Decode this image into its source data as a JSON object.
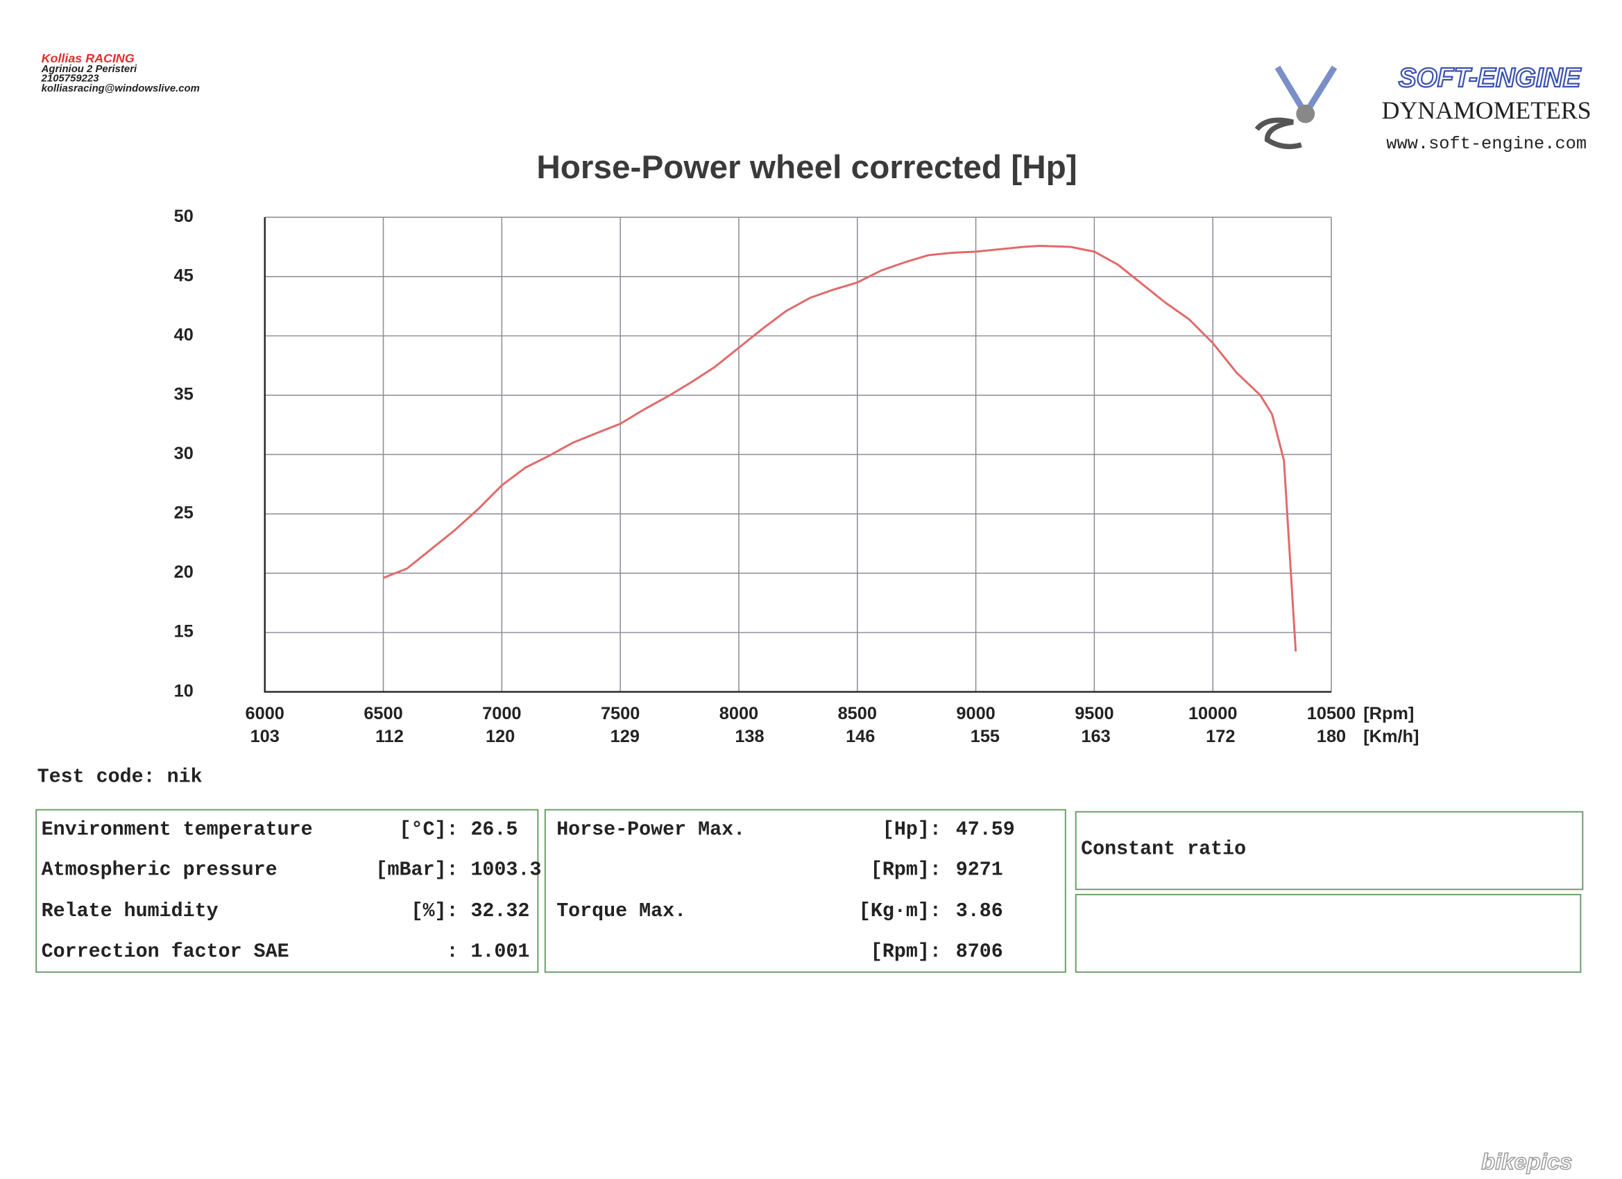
{
  "header": {
    "company": "Kollias RACING",
    "address": "Agriniou 2 Peristeri",
    "phone": "2105759223",
    "email": "kolliasracing@windowslive.com"
  },
  "logo": {
    "brand": "SOFT-ENGINE",
    "subtitle": "DYNAMOMETERS",
    "url": "www.soft-engine.com"
  },
  "chart_data": {
    "type": "line",
    "title": "Horse-Power wheel corrected [Hp]",
    "x": [
      6500,
      6600,
      6700,
      6800,
      6900,
      7000,
      7100,
      7200,
      7300,
      7400,
      7500,
      7600,
      7700,
      7800,
      7900,
      8000,
      8100,
      8200,
      8300,
      8400,
      8500,
      8600,
      8700,
      8800,
      8900,
      9000,
      9100,
      9200,
      9271,
      9400,
      9500,
      9600,
      9700,
      9800,
      9900,
      10000,
      10100,
      10200,
      10250,
      10300,
      10320,
      10350
    ],
    "values": [
      19.6,
      20.4,
      22.0,
      23.6,
      25.4,
      27.4,
      28.9,
      29.9,
      31.0,
      31.8,
      32.6,
      33.8,
      34.9,
      36.1,
      37.4,
      39.0,
      40.6,
      42.1,
      43.2,
      43.9,
      44.5,
      45.5,
      46.2,
      46.8,
      47.0,
      47.1,
      47.3,
      47.5,
      47.59,
      47.5,
      47.1,
      46.0,
      44.4,
      42.8,
      41.4,
      39.4,
      36.9,
      35.0,
      33.4,
      29.5,
      23.0,
      13.4
    ],
    "color": "#e06a6a",
    "xlim": [
      6000,
      10500
    ],
    "ylim": [
      10,
      50
    ],
    "xticks": [
      6000,
      6500,
      7000,
      7500,
      8000,
      8500,
      9000,
      9500,
      10000,
      10500
    ],
    "yticks": [
      10,
      15,
      20,
      25,
      30,
      35,
      40,
      45,
      50
    ],
    "xlabel": "[Rpm]",
    "x2lim": [
      103,
      180
    ],
    "x2ticks": [
      103,
      112,
      120,
      129,
      138,
      146,
      155,
      163,
      172,
      180
    ],
    "x2label": "[Km/h]",
    "grid": true
  },
  "test_code": "Test code: nik",
  "conditions": {
    "rows": [
      [
        "Environment temperature",
        "[°C]:",
        "26.5"
      ],
      [
        "Atmospheric pressure",
        "[mBar]:",
        "1003.3"
      ],
      [
        "Relate humidity",
        "[%]:",
        "32.32"
      ],
      [
        "Correction factor SAE",
        ":",
        "1.001"
      ]
    ]
  },
  "maxima": [
    {
      "label": "Horse-Power Max.",
      "rows": [
        [
          "[Hp]:",
          "47.59"
        ],
        [
          "[Rpm]:",
          "9271"
        ]
      ]
    },
    {
      "label": "Torque Max.",
      "rows": [
        [
          "[Kg·m]:",
          "3.86"
        ],
        [
          "[Rpm]:",
          "8706"
        ]
      ]
    }
  ],
  "ratio": "Constant ratio",
  "watermark": "bikepics"
}
